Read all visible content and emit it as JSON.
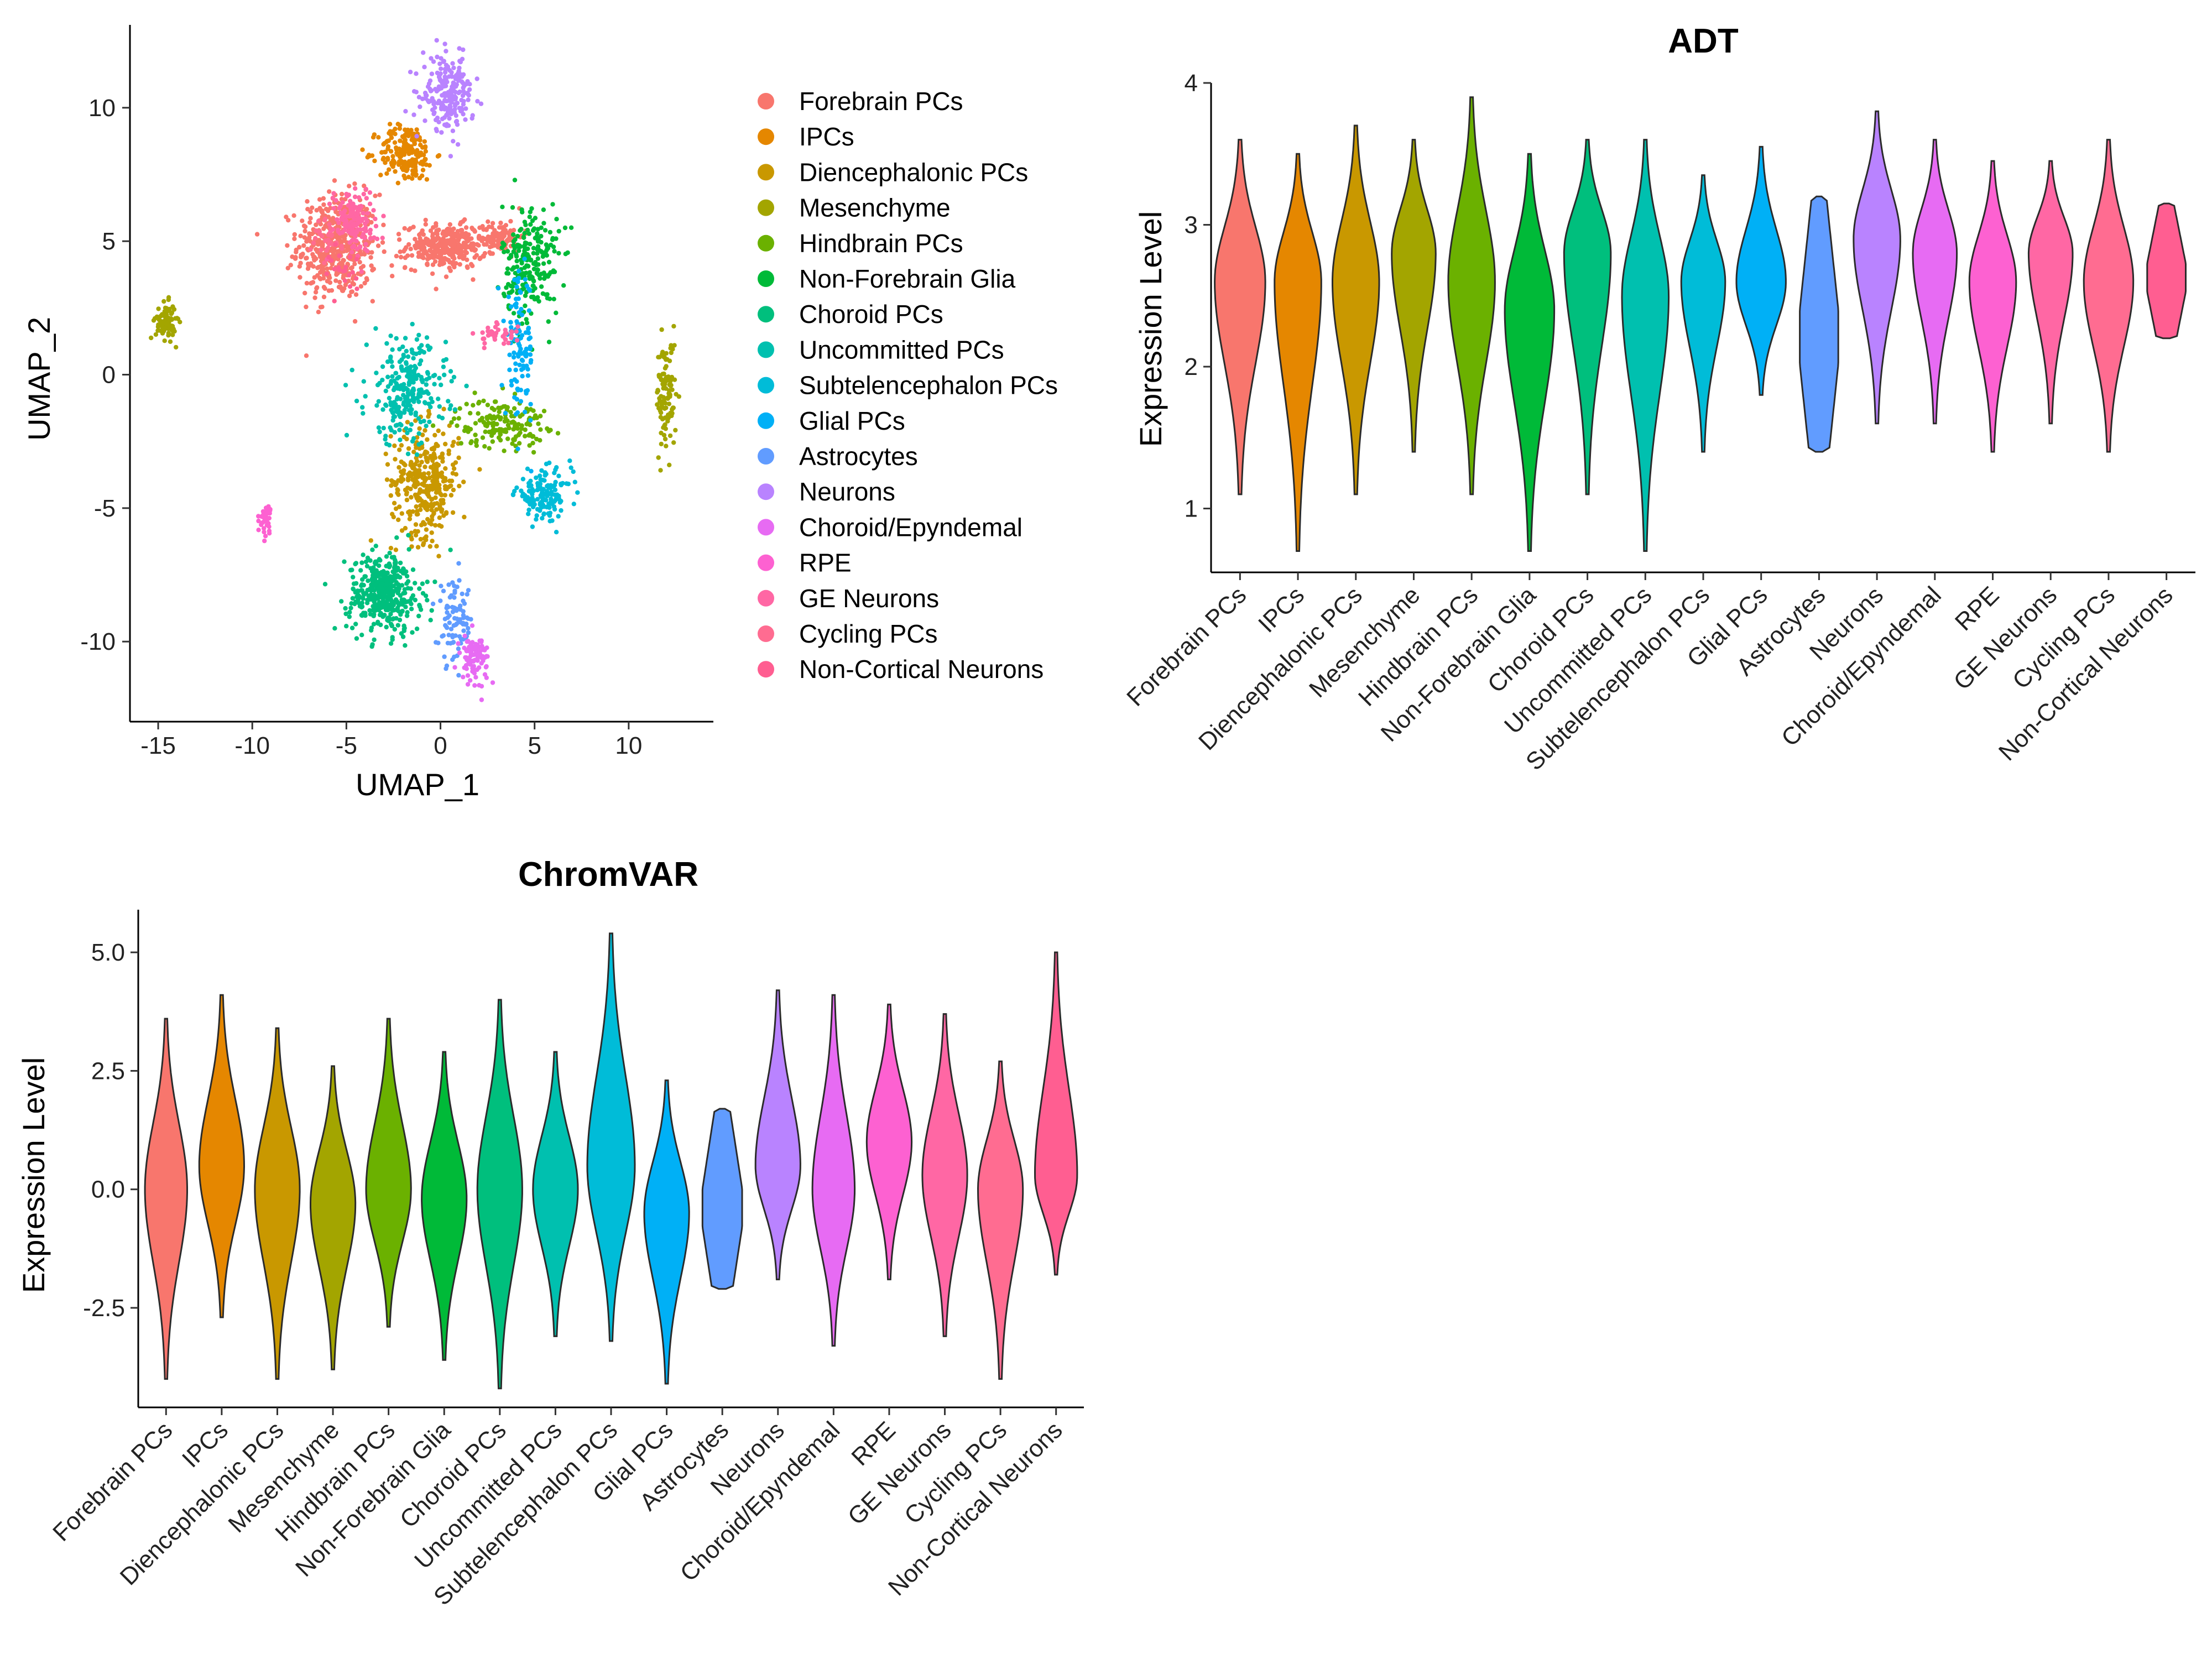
{
  "chart_data": [
    {
      "type": "scatter",
      "title": "",
      "xlabel": "UMAP_1",
      "ylabel": "UMAP_2",
      "xlim": [
        -16.5,
        14.5
      ],
      "ylim": [
        -13,
        13
      ],
      "xticks": [
        -15,
        -10,
        -5,
        0,
        5,
        10
      ],
      "yticks": [
        -10,
        -5,
        0,
        5,
        10
      ],
      "legend_position": "right",
      "legend": [
        {
          "label": "Forebrain PCs",
          "color": "#F8766D"
        },
        {
          "label": "IPCs",
          "color": "#E58700"
        },
        {
          "label": "Diencephalonic PCs",
          "color": "#C99800"
        },
        {
          "label": "Mesenchyme",
          "color": "#A3A500"
        },
        {
          "label": "Hindbrain PCs",
          "color": "#6BB100"
        },
        {
          "label": "Non-Forebrain Glia",
          "color": "#00BA38"
        },
        {
          "label": "Choroid PCs",
          "color": "#00BF7D"
        },
        {
          "label": "Uncommitted PCs",
          "color": "#00C0AF"
        },
        {
          "label": "Subtelencephalon PCs",
          "color": "#00BCD8"
        },
        {
          "label": "Glial PCs",
          "color": "#00B0F6"
        },
        {
          "label": "Astrocytes",
          "color": "#619CFF"
        },
        {
          "label": "Neurons",
          "color": "#B983FF"
        },
        {
          "label": "Choroid/Epyndemal",
          "color": "#E76BF3"
        },
        {
          "label": "RPE",
          "color": "#FD61D1"
        },
        {
          "label": "GE Neurons",
          "color": "#FF67A4"
        },
        {
          "label": "Cycling PCs",
          "color": "#FF6C91"
        },
        {
          "label": "Non-Cortical Neurons",
          "color": "#FF5E91"
        }
      ],
      "clusters": [
        {
          "name": "Forebrain PCs",
          "cx": -5.5,
          "cy": 4.8,
          "sx": 1.4,
          "sy": 1.3,
          "n": 500
        },
        {
          "name": "Forebrain PCs",
          "cx": 0.3,
          "cy": 4.8,
          "sx": 1.4,
          "sy": 0.55,
          "n": 320
        },
        {
          "name": "Forebrain PCs",
          "cx": 3.2,
          "cy": 5.2,
          "sx": 0.8,
          "sy": 0.4,
          "n": 100
        },
        {
          "name": "IPCs",
          "cx": -1.8,
          "cy": 8.3,
          "sx": 1.0,
          "sy": 0.7,
          "n": 200
        },
        {
          "name": "Diencephalonic PCs",
          "cx": -0.8,
          "cy": -4.0,
          "sx": 1.2,
          "sy": 1.4,
          "n": 340
        },
        {
          "name": "Mesenchyme",
          "cx": -14.6,
          "cy": 2.0,
          "sx": 0.35,
          "sy": 0.45,
          "n": 90
        },
        {
          "name": "Mesenchyme",
          "cx": 12.0,
          "cy": -0.8,
          "sx": 0.35,
          "sy": 1.4,
          "n": 110
        },
        {
          "name": "Hindbrain PCs",
          "cx": 3.2,
          "cy": -1.8,
          "sx": 1.6,
          "sy": 0.6,
          "n": 160
        },
        {
          "name": "Non-Forebrain Glia",
          "cx": 4.8,
          "cy": 4.2,
          "sx": 1.0,
          "sy": 1.5,
          "n": 230
        },
        {
          "name": "Choroid PCs",
          "cx": -3.0,
          "cy": -8.2,
          "sx": 1.3,
          "sy": 1.0,
          "n": 400
        },
        {
          "name": "Uncommitted PCs",
          "cx": -1.8,
          "cy": -0.6,
          "sx": 1.4,
          "sy": 1.3,
          "n": 260
        },
        {
          "name": "Subtelencephalon PCs",
          "cx": 5.5,
          "cy": -4.5,
          "sx": 1.0,
          "sy": 0.6,
          "n": 140
        },
        {
          "name": "Glial PCs",
          "cx": 4.2,
          "cy": 1.0,
          "sx": 0.5,
          "sy": 1.8,
          "n": 110
        },
        {
          "name": "Astrocytes",
          "cx": 0.8,
          "cy": -9.3,
          "sx": 0.6,
          "sy": 1.0,
          "n": 90
        },
        {
          "name": "Neurons",
          "cx": 0.4,
          "cy": 10.5,
          "sx": 0.9,
          "sy": 0.9,
          "n": 220
        },
        {
          "name": "Choroid/Epyndemal",
          "cx": 1.8,
          "cy": -10.6,
          "sx": 0.5,
          "sy": 0.6,
          "n": 90
        },
        {
          "name": "RPE",
          "cx": -9.3,
          "cy": -5.4,
          "sx": 0.2,
          "sy": 0.35,
          "n": 40
        },
        {
          "name": "GE Neurons",
          "cx": -4.6,
          "cy": 5.8,
          "sx": 0.8,
          "sy": 0.8,
          "n": 140
        },
        {
          "name": "GE Neurons",
          "cx": 3.0,
          "cy": 1.5,
          "sx": 0.7,
          "sy": 0.25,
          "n": 40
        },
        {
          "name": "Cycling PCs",
          "cx": -6.0,
          "cy": 5.0,
          "sx": 0.6,
          "sy": 0.6,
          "n": 30
        },
        {
          "name": "Non-Cortical Neurons",
          "cx": -5.0,
          "cy": 4.0,
          "sx": 0.6,
          "sy": 0.6,
          "n": 20
        }
      ]
    },
    {
      "type": "violin",
      "title": "ADT",
      "xlabel": "",
      "ylabel": "Expression Level",
      "ylim": [
        0.55,
        4.0
      ],
      "yticks": [
        1,
        2,
        3,
        4
      ],
      "categories": [
        "Forebrain PCs",
        "IPCs",
        "Diencephalonic PCs",
        "Mesenchyme",
        "Hindbrain PCs",
        "Non-Forebrain Glia",
        "Choroid PCs",
        "Uncommitted PCs",
        "Subtelencephalon PCs",
        "Glial PCs",
        "Astrocytes",
        "Neurons",
        "Choroid/Epyndemal",
        "RPE",
        "GE Neurons",
        "Cycling PCs",
        "Non-Cortical Neurons"
      ],
      "series": [
        {
          "min": 1.1,
          "max": 3.6,
          "median": 2.6,
          "shape": "normal",
          "width": 0.92
        },
        {
          "min": 0.7,
          "max": 3.5,
          "median": 2.6,
          "shape": "normal",
          "width": 0.85
        },
        {
          "min": 1.1,
          "max": 3.7,
          "median": 2.6,
          "shape": "normal",
          "width": 0.85
        },
        {
          "min": 1.4,
          "max": 3.6,
          "median": 2.8,
          "shape": "normal",
          "width": 0.8
        },
        {
          "min": 1.1,
          "max": 3.9,
          "median": 2.6,
          "shape": "normal",
          "width": 0.85
        },
        {
          "min": 0.7,
          "max": 3.5,
          "median": 2.4,
          "shape": "normal",
          "width": 0.9
        },
        {
          "min": 1.1,
          "max": 3.6,
          "median": 2.8,
          "shape": "normal",
          "width": 0.85
        },
        {
          "min": 0.7,
          "max": 3.6,
          "median": 2.5,
          "shape": "normal",
          "width": 0.85
        },
        {
          "min": 1.4,
          "max": 3.35,
          "median": 2.6,
          "shape": "normal",
          "width": 0.8
        },
        {
          "min": 1.8,
          "max": 3.55,
          "median": 2.6,
          "shape": "normal",
          "width": 0.9
        },
        {
          "min": 1.4,
          "max": 3.2,
          "median": 2.4,
          "shape": "flat",
          "width": 0.7
        },
        {
          "min": 1.6,
          "max": 3.8,
          "median": 2.9,
          "shape": "normal",
          "width": 0.85
        },
        {
          "min": 1.6,
          "max": 3.6,
          "median": 2.8,
          "shape": "normal",
          "width": 0.8
        },
        {
          "min": 1.4,
          "max": 3.45,
          "median": 2.6,
          "shape": "normal",
          "width": 0.85
        },
        {
          "min": 1.6,
          "max": 3.45,
          "median": 2.8,
          "shape": "normal",
          "width": 0.8
        },
        {
          "min": 1.4,
          "max": 3.6,
          "median": 2.6,
          "shape": "normal",
          "width": 0.9
        },
        {
          "min": 2.2,
          "max": 3.15,
          "median": 2.7,
          "shape": "flat",
          "width": 0.7
        }
      ]
    },
    {
      "type": "violin",
      "title": "ChromVAR",
      "xlabel": "",
      "ylabel": "Expression Level",
      "ylim": [
        -4.6,
        5.9
      ],
      "yticks": [
        -2.5,
        0.0,
        2.5,
        5.0
      ],
      "ytick_labels": [
        "-2.5",
        "0.0",
        "2.5",
        "5.0"
      ],
      "categories": [
        "Forebrain PCs",
        "IPCs",
        "Diencephalonic PCs",
        "Mesenchyme",
        "Hindbrain PCs",
        "Non-Forebrain Glia",
        "Choroid PCs",
        "Uncommitted PCs",
        "Subtelencephalon PCs",
        "Glial PCs",
        "Astrocytes",
        "Neurons",
        "Choroid/Epyndemal",
        "RPE",
        "GE Neurons",
        "Cycling PCs",
        "Non-Cortical Neurons"
      ],
      "series": [
        {
          "min": -4.0,
          "max": 3.6,
          "median": 0.0,
          "shape": "normal",
          "width": 0.8
        },
        {
          "min": -2.7,
          "max": 4.1,
          "median": 0.5,
          "shape": "normal",
          "width": 0.85
        },
        {
          "min": -4.0,
          "max": 3.4,
          "median": 0.0,
          "shape": "normal",
          "width": 0.85
        },
        {
          "min": -3.8,
          "max": 2.6,
          "median": -0.3,
          "shape": "normal",
          "width": 0.85
        },
        {
          "min": -2.9,
          "max": 3.6,
          "median": 0.0,
          "shape": "normal",
          "width": 0.85
        },
        {
          "min": -3.6,
          "max": 2.9,
          "median": -0.2,
          "shape": "normal",
          "width": 0.85
        },
        {
          "min": -4.2,
          "max": 4.0,
          "median": 0.0,
          "shape": "normal",
          "width": 0.85
        },
        {
          "min": -3.1,
          "max": 2.9,
          "median": 0.0,
          "shape": "normal",
          "width": 0.85
        },
        {
          "min": -3.2,
          "max": 5.4,
          "median": 0.5,
          "shape": "normal",
          "width": 0.9
        },
        {
          "min": -4.1,
          "max": 2.3,
          "median": -0.5,
          "shape": "normal",
          "width": 0.85
        },
        {
          "min": -2.1,
          "max": 1.7,
          "median": 0.0,
          "shape": "flat",
          "width": 0.75
        },
        {
          "min": -1.9,
          "max": 4.2,
          "median": 0.5,
          "shape": "normal",
          "width": 0.85
        },
        {
          "min": -3.3,
          "max": 4.1,
          "median": 0.0,
          "shape": "normal",
          "width": 0.8
        },
        {
          "min": -1.9,
          "max": 3.9,
          "median": 1.0,
          "shape": "normal",
          "width": 0.85
        },
        {
          "min": -3.1,
          "max": 3.7,
          "median": 0.3,
          "shape": "normal",
          "width": 0.85
        },
        {
          "min": -4.0,
          "max": 2.7,
          "median": 0.0,
          "shape": "normal",
          "width": 0.85
        },
        {
          "min": -1.8,
          "max": 5.0,
          "median": 0.3,
          "shape": "normal",
          "width": 0.8
        }
      ]
    }
  ]
}
